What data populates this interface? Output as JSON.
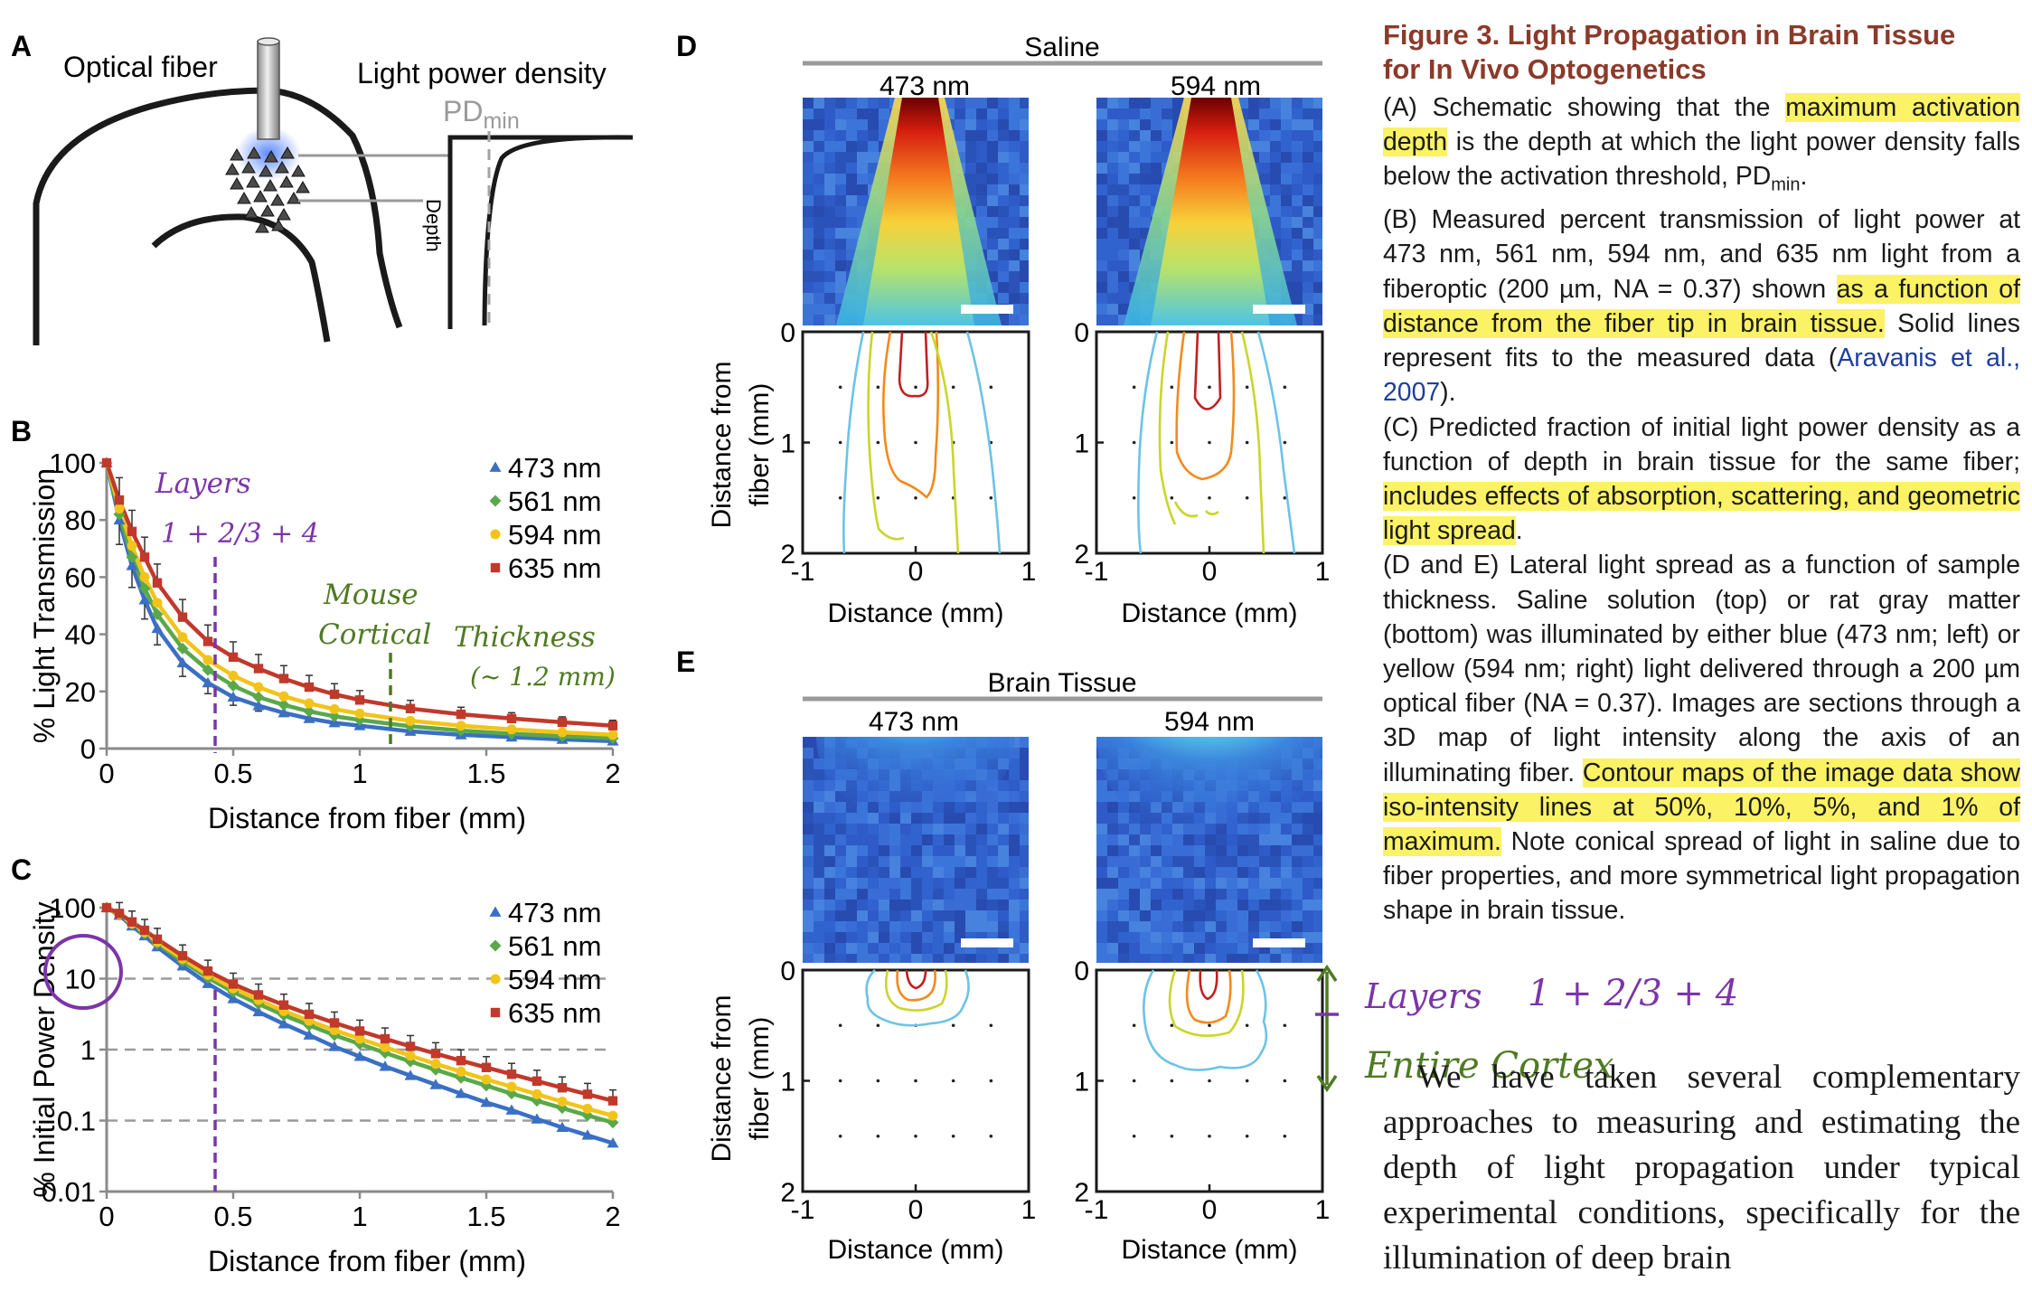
{
  "panels": {
    "A": "A",
    "B": "B",
    "C": "C",
    "D": "D",
    "E": "E"
  },
  "schematic": {
    "optical_fiber": "Optical fiber",
    "light_power_density": "Light power density",
    "pd_min": "PD",
    "pd_min_sub": "min",
    "depth": "Depth"
  },
  "panel_b_chart": {
    "type": "line",
    "xlabel": "Distance from fiber (mm)",
    "ylabel": "% Light Transmission",
    "xlim": [
      0,
      2
    ],
    "ylim": [
      0,
      100
    ],
    "xticks": [
      "0",
      "0.5",
      "1",
      "1.5",
      "2"
    ],
    "yticks": [
      "0",
      "20",
      "40",
      "60",
      "80",
      "100"
    ],
    "legend_position": "top-right",
    "series": [
      {
        "name": "473 nm",
        "color": "#3a6fc4",
        "marker": "triangle",
        "x": [
          0,
          0.05,
          0.1,
          0.15,
          0.2,
          0.3,
          0.4,
          0.5,
          0.6,
          0.7,
          0.8,
          0.9,
          1.0,
          1.2,
          1.4,
          1.6,
          1.8,
          2.0
        ],
        "y": [
          100,
          80,
          64,
          52,
          42,
          30,
          23,
          18,
          15,
          12.5,
          10.5,
          9,
          8,
          6,
          4.8,
          4,
          3.2,
          2.6
        ]
      },
      {
        "name": "561 nm",
        "color": "#5aa84a",
        "marker": "diamond",
        "x": [
          0,
          0.05,
          0.1,
          0.15,
          0.2,
          0.3,
          0.4,
          0.5,
          0.6,
          0.7,
          0.8,
          0.9,
          1.0,
          1.2,
          1.4,
          1.6,
          1.8,
          2.0
        ],
        "y": [
          100,
          82,
          67,
          56,
          47,
          35,
          27.5,
          22,
          18,
          15.3,
          13,
          11.3,
          10,
          7.8,
          6.3,
          5.2,
          4.3,
          3.6
        ]
      },
      {
        "name": "594 nm",
        "color": "#f2c41a",
        "marker": "circle",
        "x": [
          0,
          0.05,
          0.1,
          0.15,
          0.2,
          0.3,
          0.4,
          0.5,
          0.6,
          0.7,
          0.8,
          0.9,
          1.0,
          1.2,
          1.4,
          1.6,
          1.8,
          2.0
        ],
        "y": [
          100,
          84,
          71,
          60,
          51,
          39,
          31,
          25.5,
          21.5,
          18.3,
          15.8,
          13.8,
          12.2,
          9.7,
          8,
          6.7,
          5.7,
          4.8
        ]
      },
      {
        "name": "635 nm",
        "color": "#c0392b",
        "marker": "square",
        "x": [
          0,
          0.05,
          0.1,
          0.15,
          0.2,
          0.3,
          0.4,
          0.5,
          0.6,
          0.7,
          0.8,
          0.9,
          1.0,
          1.2,
          1.4,
          1.6,
          1.8,
          2.0
        ],
        "y": [
          100,
          87,
          76,
          67,
          58,
          46,
          37.5,
          32,
          28,
          24.5,
          21.5,
          19,
          17,
          14,
          12,
          10.5,
          9.2,
          8
        ]
      }
    ]
  },
  "panel_c_chart": {
    "type": "line",
    "xlabel": "Distance from fiber (mm)",
    "ylabel": "% Initial Power Density",
    "xlim": [
      0,
      2
    ],
    "ylim": [
      0.01,
      100
    ],
    "yscale": "log",
    "xticks": [
      "0",
      "0.5",
      "1",
      "1.5",
      "2"
    ],
    "yticks": [
      "0.01",
      "0.1",
      "1",
      "10",
      "100"
    ],
    "dashed_gridlines_at": [
      10,
      1,
      0.1
    ],
    "legend_position": "top-right",
    "series": [
      {
        "name": "473 nm",
        "color": "#3a6fc4",
        "marker": "triangle",
        "x": [
          0,
          0.05,
          0.1,
          0.15,
          0.2,
          0.3,
          0.4,
          0.5,
          0.6,
          0.7,
          0.8,
          0.9,
          1.0,
          1.1,
          1.2,
          1.3,
          1.4,
          1.5,
          1.6,
          1.7,
          1.8,
          1.9,
          2.0
        ],
        "y": [
          100,
          78,
          55,
          40,
          28,
          15,
          8.5,
          5.2,
          3.4,
          2.3,
          1.6,
          1.1,
          0.8,
          0.58,
          0.43,
          0.32,
          0.24,
          0.18,
          0.14,
          0.105,
          0.08,
          0.062,
          0.048
        ]
      },
      {
        "name": "561 nm",
        "color": "#5aa84a",
        "marker": "diamond",
        "x": [
          0,
          0.05,
          0.1,
          0.15,
          0.2,
          0.3,
          0.4,
          0.5,
          0.6,
          0.7,
          0.8,
          0.9,
          1.0,
          1.1,
          1.2,
          1.3,
          1.4,
          1.5,
          1.6,
          1.7,
          1.8,
          1.9,
          2.0
        ],
        "y": [
          100,
          80,
          58,
          43,
          31,
          17.5,
          10.3,
          6.5,
          4.4,
          3.05,
          2.2,
          1.6,
          1.2,
          0.9,
          0.68,
          0.52,
          0.4,
          0.31,
          0.24,
          0.19,
          0.15,
          0.118,
          0.094
        ]
      },
      {
        "name": "594 nm",
        "color": "#f2c41a",
        "marker": "circle",
        "x": [
          0,
          0.05,
          0.1,
          0.15,
          0.2,
          0.3,
          0.4,
          0.5,
          0.6,
          0.7,
          0.8,
          0.9,
          1.0,
          1.1,
          1.2,
          1.3,
          1.4,
          1.5,
          1.6,
          1.7,
          1.8,
          1.9,
          2.0
        ],
        "y": [
          100,
          81,
          60,
          45,
          33,
          19,
          11.3,
          7.3,
          5,
          3.5,
          2.55,
          1.88,
          1.42,
          1.08,
          0.82,
          0.63,
          0.49,
          0.38,
          0.3,
          0.235,
          0.185,
          0.147,
          0.117
        ]
      },
      {
        "name": "635 nm",
        "color": "#c0392b",
        "marker": "square",
        "x": [
          0,
          0.05,
          0.1,
          0.15,
          0.2,
          0.3,
          0.4,
          0.5,
          0.6,
          0.7,
          0.8,
          0.9,
          1.0,
          1.1,
          1.2,
          1.3,
          1.4,
          1.5,
          1.6,
          1.7,
          1.8,
          1.9,
          2.0
        ],
        "y": [
          100,
          83,
          63,
          48,
          36,
          21,
          12.8,
          8.4,
          5.9,
          4.25,
          3.15,
          2.38,
          1.83,
          1.42,
          1.11,
          0.88,
          0.7,
          0.56,
          0.45,
          0.36,
          0.29,
          0.235,
          0.19
        ]
      }
    ]
  },
  "panel_d": {
    "title": "Saline",
    "left_label": "473 nm",
    "right_label": "594 nm",
    "yaxis_label_line1": "Distance from",
    "yaxis_label_line2": "fiber (mm)",
    "xlabel": "Distance (mm)",
    "xticks": [
      "-1",
      "0",
      "1"
    ],
    "yticks": [
      "0",
      "1",
      "2"
    ],
    "contour_colors": [
      "#c0201f",
      "#f28a1c",
      "#c9d62a",
      "#6cc3e6"
    ]
  },
  "panel_e": {
    "title": "Brain Tissue",
    "left_label": "473 nm",
    "right_label": "594 nm",
    "yaxis_label_line1": "Distance from",
    "yaxis_label_line2": "fiber (mm)",
    "xlabel": "Distance (mm)",
    "xticks": [
      "-1",
      "0",
      "1"
    ],
    "yticks": [
      "0",
      "1",
      "2"
    ]
  },
  "annotations": {
    "layers_b_1": "Layers",
    "layers_b_2": "1 + 2/3 + 4",
    "mouse_cortical_1": "Mouse",
    "mouse_cortical_2": "Cortical",
    "thickness_1": "Thickness",
    "thickness_2": "(~ 1.2 mm)",
    "layers_e": "Layers",
    "layers_e_2": "1 + 2/3 + 4",
    "entire_cortex": "Entire Cortex",
    "purple": "#7b35a8",
    "green": "#4f7a22"
  },
  "caption": {
    "title_line1": "Figure 3.  Light Propagation in Brain Tissue",
    "title_line2": "for In Vivo Optogenetics",
    "a_1": "(A) Schematic showing that the ",
    "a_hl": "maximum activation depth",
    "a_2": " is the depth at which the light power density falls below the activation threshold, PD",
    "a_sub": "min",
    "a_3": ".",
    "b_1": "(B) Measured percent transmission of light power at 473 nm, 561 nm, 594 nm, and 635 nm light from a fiberoptic (200 µm, NA = 0.37) shown ",
    "b_hl": "as a function of distance from the fiber tip in brain tissue.",
    "b_2": " Solid lines represent fits to the measured data (",
    "b_cite": "Aravanis et al., 2007",
    "b_3": ").",
    "c_1": "(C) Predicted fraction of initial light power density as a function of depth in brain tissue for the same fiber; ",
    "c_hl": "includes effects of absorption, scattering, and geometric light spread",
    "c_2": ".",
    "de_1": "(D and E) Lateral light spread as a function of sample thickness. Saline solution (top) or rat gray matter (bottom) was illuminated by either blue (473 nm; left) or yellow (594 nm; right) light delivered through a 200 µm optical fiber (NA = 0.37). Images are sections through a 3D map of light intensity along the axis of an illuminating fiber. ",
    "de_hl": "Contour maps of the image data show iso-intensity lines at 50%, 10%, 5%, and 1% of maximum.",
    "de_2": " Note conical spread of light in saline due to fiber properties, and more symmetrical light propagation shape in brain tissue.",
    "main_text": "We have taken several complementary approaches to measuring and estimating the depth of light propagation under typical experimental conditions, specifically for the illumination of deep brain"
  }
}
